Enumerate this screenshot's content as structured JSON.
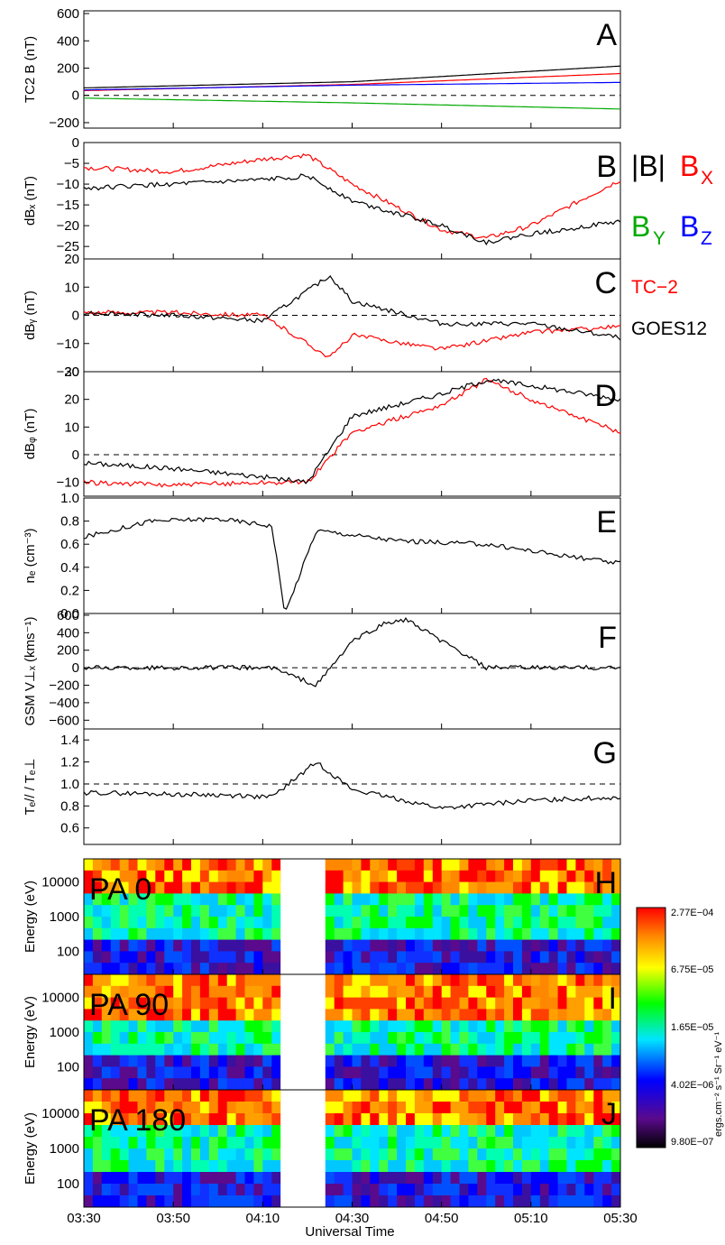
{
  "x_axis": {
    "label": "Universal Time",
    "ticks": [
      "03:30",
      "03:50",
      "04:10",
      "04:30",
      "04:50",
      "05:10",
      "05:30"
    ]
  },
  "legend": {
    "B": "|B|",
    "Bx": "B",
    "Bx_sub": "X",
    "By": "B",
    "By_sub": "Y",
    "Bz": "B",
    "Bz_sub": "Z",
    "tc2": "TC−2",
    "goes": "GOES12",
    "colors": {
      "black": "#000000",
      "red": "#ff0000",
      "green": "#00aa00",
      "blue": "#0000ff"
    }
  },
  "colorbar": {
    "ticks": [
      "2.77E−04",
      "6.75E−05",
      "1.65E−05",
      "4.02E−06",
      "9.80E−07"
    ],
    "label": "ergs.cm⁻² s⁻¹ Sr⁻¹ eV⁻¹"
  },
  "chart_data": [
    {
      "id": "A",
      "type": "line",
      "panel_label": "A",
      "ylabel": "TC2 B (nT)",
      "ylim": [
        -240,
        620
      ],
      "yticks": [
        "600",
        "400",
        "200",
        "0",
        "−200"
      ],
      "x": [
        "03:30",
        "04:30",
        "05:30"
      ],
      "series": [
        {
          "color": "#000000",
          "values": [
            55,
            100,
            215
          ]
        },
        {
          "color": "#ff0000",
          "values": [
            35,
            80,
            160
          ]
        },
        {
          "color": "#0000ff",
          "values": [
            40,
            75,
            95
          ]
        },
        {
          "color": "#00aa00",
          "values": [
            -20,
            -55,
            -100
          ]
        }
      ],
      "dashed_zero": true
    },
    {
      "id": "B",
      "type": "line",
      "panel_label": "B",
      "ylabel": "dBₓ (nT)",
      "ylim": [
        -28,
        0
      ],
      "yticks": [
        "0",
        "−5",
        "−10",
        "−15",
        "−20",
        "−25"
      ],
      "x": [
        "03:30",
        "03:50",
        "04:10",
        "04:20",
        "04:30",
        "04:50",
        "05:00",
        "05:10",
        "05:30"
      ],
      "series": [
        {
          "name": "TC−2",
          "color": "#ff0000",
          "values": [
            -6,
            -7,
            -4,
            -3,
            -10,
            -21,
            -23,
            -20,
            -9
          ]
        },
        {
          "name": "GOES12",
          "color": "#000000",
          "values": [
            -11,
            -10,
            -9,
            -8,
            -14,
            -20,
            -24,
            -22,
            -19
          ]
        }
      ]
    },
    {
      "id": "C",
      "type": "line",
      "panel_label": "C",
      "ylabel": "dBᵧ (nT)",
      "ylim": [
        -20,
        20
      ],
      "yticks": [
        "20",
        "10",
        "0",
        "−10",
        "−20"
      ],
      "x": [
        "03:30",
        "03:50",
        "04:10",
        "04:25",
        "04:30",
        "04:50",
        "05:10",
        "05:30"
      ],
      "series": [
        {
          "name": "TC−2",
          "color": "#ff0000",
          "values": [
            1,
            1,
            0,
            -15,
            -7,
            -12,
            -6,
            -4
          ]
        },
        {
          "name": "GOES12",
          "color": "#000000",
          "values": [
            1,
            0,
            -2,
            14,
            5,
            -3,
            -3,
            -8
          ]
        }
      ],
      "dashed_zero": true
    },
    {
      "id": "D",
      "type": "line",
      "panel_label": "D",
      "ylabel": "dBᵩ (nT)",
      "ylim": [
        -15,
        30
      ],
      "yticks": [
        "30",
        "20",
        "10",
        "0",
        "−10"
      ],
      "x": [
        "03:30",
        "03:50",
        "04:10",
        "04:20",
        "04:30",
        "04:50",
        "05:00",
        "05:10",
        "05:30"
      ],
      "series": [
        {
          "name": "TC−2",
          "color": "#ff0000",
          "values": [
            -10,
            -11,
            -10,
            -10,
            8,
            18,
            27,
            20,
            8
          ]
        },
        {
          "name": "GOES12",
          "color": "#000000",
          "values": [
            -3,
            -5,
            -8,
            -10,
            14,
            22,
            27,
            25,
            20
          ]
        }
      ],
      "dashed_zero": true
    },
    {
      "id": "E",
      "type": "line",
      "panel_label": "E",
      "ylabel": "nₑ (cm⁻³)",
      "ylim": [
        0,
        1
      ],
      "yticks": [
        "1.0",
        "0.8",
        "0.6",
        "0.4",
        "0.2",
        "0.0"
      ],
      "x": [
        "03:30",
        "03:45",
        "04:00",
        "04:12",
        "04:15",
        "04:22",
        "04:40",
        "05:00",
        "05:30"
      ],
      "series": [
        {
          "color": "#000000",
          "values": [
            0.66,
            0.8,
            0.82,
            0.76,
            0.0,
            0.72,
            0.63,
            0.6,
            0.43
          ]
        }
      ]
    },
    {
      "id": "F",
      "type": "line",
      "panel_label": "F",
      "ylabel": "GSM V⊥ₓ (kms⁻¹)",
      "ylim": [
        -700,
        620
      ],
      "yticks": [
        "600",
        "400",
        "200",
        "0",
        "−200",
        "−400",
        "−600"
      ],
      "x": [
        "03:30",
        "04:12",
        "04:22",
        "04:30",
        "04:37",
        "04:42",
        "05:00",
        "05:30"
      ],
      "series": [
        {
          "color": "#000000",
          "values": [
            0,
            0,
            -200,
            300,
            500,
            550,
            0,
            0
          ]
        }
      ],
      "dashed_zero": true
    },
    {
      "id": "G",
      "type": "line",
      "panel_label": "G",
      "ylabel": "Tₑ// / Tₑ⊥",
      "ylim": [
        0.45,
        1.5
      ],
      "yticks": [
        "1.4",
        "1.2",
        "1.0",
        "0.8",
        "0.6"
      ],
      "x": [
        "03:30",
        "04:00",
        "04:12",
        "04:22",
        "04:30",
        "04:50",
        "05:10",
        "05:30"
      ],
      "series": [
        {
          "color": "#000000",
          "values": [
            0.92,
            0.9,
            0.88,
            1.2,
            0.95,
            0.78,
            0.85,
            0.88
          ]
        }
      ],
      "dashed_one": true
    },
    {
      "id": "H",
      "type": "heatmap",
      "panel_label": "H",
      "pa_label": "PA 0",
      "ylabel": "Energy (eV)",
      "yticks": [
        "10000",
        "1000",
        "100"
      ]
    },
    {
      "id": "I",
      "type": "heatmap",
      "panel_label": "I",
      "pa_label": "PA 90",
      "ylabel": "Energy (eV)",
      "yticks": [
        "10000",
        "1000",
        "100"
      ]
    },
    {
      "id": "J",
      "type": "heatmap",
      "panel_label": "J",
      "pa_label": "PA 180",
      "ylabel": "Energy (eV)",
      "yticks": [
        "10000",
        "1000",
        "100"
      ]
    }
  ]
}
